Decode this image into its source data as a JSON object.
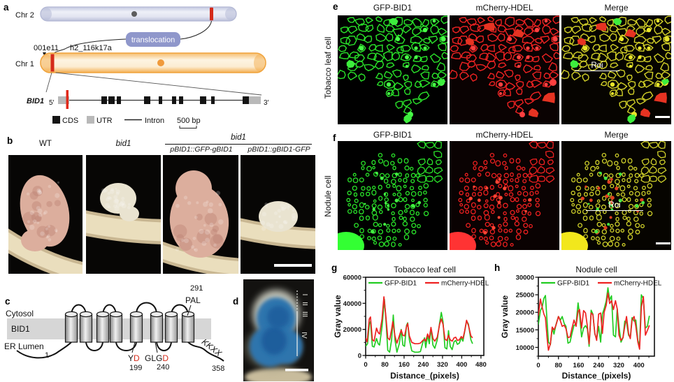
{
  "panels": {
    "a": {
      "letter": "a",
      "chr2_label": "Chr 2",
      "chr1_label": "Chr 1",
      "translocation_label": "translocation",
      "marker1": "001e11",
      "marker2": "h2_116k17a",
      "gene_name": "BID1",
      "five_prime": "5′",
      "three_prime": "3′",
      "legend": {
        "cds": "CDS",
        "utr": "UTR",
        "intron": "Intron",
        "scale": "500 bp"
      }
    },
    "b": {
      "letter": "b",
      "col1": "WT",
      "col2": "bid1",
      "group": "bid1",
      "col3": "pBID1::GFP-gBID1",
      "col4": "pBID1::gBID1-GFP"
    },
    "c": {
      "letter": "c",
      "cytosol": "Cytosol",
      "protein": "BID1",
      "er_lumen": "ER Lumen",
      "n_term": "1",
      "c_term": "358",
      "pal": "PAL",
      "pal_pos": "291",
      "yd_y": "Y",
      "yd_d": "D",
      "yd_pos": "199",
      "glgd_glg": "GLG",
      "glgd_d": "D",
      "glgd_pos": "240",
      "kkxx": "KKXX"
    },
    "d": {
      "letter": "d",
      "zones": [
        "I",
        "II",
        "III",
        "IV"
      ]
    },
    "e": {
      "letter": "e",
      "side_label": "Tobacco leaf cell",
      "headers": [
        "GFP-BID1",
        "mCherry-HDEL",
        "Merge"
      ],
      "roi": "Roi"
    },
    "f": {
      "letter": "f",
      "side_label": "Nodule cell",
      "headers": [
        "GFP-BID1",
        "mCherry-HDEL",
        "Merge"
      ],
      "roi": "Roi"
    },
    "g": {
      "letter": "g"
    },
    "h": {
      "letter": "h"
    }
  },
  "colors": {
    "gfp_green": "#22dd22",
    "mcherry_red": "#ee2222",
    "chr2_fill": "#dbdeee",
    "chr1_fill": "#fdeed6",
    "translocation_box": "#8f97cb",
    "red_marker": "#d42a1a",
    "gus_blue": "#2f74ad"
  },
  "chart_data": [
    {
      "id": "g",
      "type": "line",
      "title": "Tobacco leaf cell",
      "xlabel": "Distance_(pixels)",
      "ylabel": "Gray value",
      "xlim": [
        0,
        492
      ],
      "ylim": [
        0,
        60000
      ],
      "xticks": [
        0,
        80,
        160,
        240,
        320,
        400,
        480
      ],
      "yticks": [
        0,
        20000,
        40000,
        60000
      ],
      "xminor": 40,
      "yminor": 10000,
      "grid": false,
      "legend_position": "top-inside",
      "plot": {
        "l": 45,
        "t": 21,
        "r": 214,
        "b": 133
      },
      "title_y": 14,
      "xlabel_y": 166,
      "ylabel_x": 9,
      "series": [
        {
          "name": "GFP-BID1",
          "color": "#22cc22",
          "points": [
            [
              0,
              7000
            ],
            [
              8,
              9000
            ],
            [
              15,
              24000
            ],
            [
              20,
              26000
            ],
            [
              28,
              7000
            ],
            [
              35,
              6500
            ],
            [
              45,
              13000
            ],
            [
              52,
              9000
            ],
            [
              58,
              8000
            ],
            [
              68,
              22000
            ],
            [
              78,
              43000
            ],
            [
              84,
              28000
            ],
            [
              92,
              4000
            ],
            [
              100,
              2500
            ],
            [
              108,
              12000
            ],
            [
              115,
              31000
            ],
            [
              122,
              12000
            ],
            [
              130,
              2500
            ],
            [
              140,
              9000
            ],
            [
              148,
              20000
            ],
            [
              155,
              8000
            ],
            [
              162,
              7000
            ],
            [
              170,
              23000
            ],
            [
              175,
              25000
            ],
            [
              182,
              12000
            ],
            [
              192,
              3500
            ],
            [
              205,
              2500
            ],
            [
              218,
              2500
            ],
            [
              228,
              3000
            ],
            [
              238,
              10000
            ],
            [
              245,
              13500
            ],
            [
              250,
              6000
            ],
            [
              258,
              15500
            ],
            [
              265,
              9000
            ],
            [
              272,
              21000
            ],
            [
              280,
              8000
            ],
            [
              288,
              5500
            ],
            [
              298,
              12000
            ],
            [
              308,
              25000
            ],
            [
              315,
              33000
            ],
            [
              322,
              26000
            ],
            [
              330,
              6000
            ],
            [
              338,
              5000
            ],
            [
              345,
              19000
            ],
            [
              352,
              7000
            ],
            [
              360,
              4500
            ],
            [
              368,
              10500
            ],
            [
              375,
              11500
            ],
            [
              382,
              8500
            ],
            [
              390,
              9500
            ],
            [
              398,
              13500
            ],
            [
              405,
              11000
            ],
            [
              412,
              18000
            ],
            [
              420,
              26500
            ],
            [
              428,
              24000
            ],
            [
              438,
              12000
            ],
            [
              445,
              9000
            ]
          ]
        },
        {
          "name": "mCherry-HDEL",
          "color": "#ee2222",
          "points": [
            [
              0,
              13500
            ],
            [
              6,
              10500
            ],
            [
              15,
              28000
            ],
            [
              20,
              29500
            ],
            [
              28,
              12000
            ],
            [
              35,
              11000
            ],
            [
              45,
              21000
            ],
            [
              52,
              17500
            ],
            [
              58,
              16500
            ],
            [
              68,
              28000
            ],
            [
              76,
              45000
            ],
            [
              84,
              30000
            ],
            [
              92,
              13500
            ],
            [
              100,
              12000
            ],
            [
              108,
              20000
            ],
            [
              113,
              26000
            ],
            [
              122,
              15000
            ],
            [
              130,
              9500
            ],
            [
              140,
              15000
            ],
            [
              148,
              19500
            ],
            [
              155,
              15500
            ],
            [
              162,
              15000
            ],
            [
              170,
              22000
            ],
            [
              175,
              24500
            ],
            [
              182,
              15000
            ],
            [
              192,
              10000
            ],
            [
              205,
              9000
            ],
            [
              218,
              9000
            ],
            [
              228,
              9500
            ],
            [
              238,
              11500
            ],
            [
              245,
              12500
            ],
            [
              250,
              11000
            ],
            [
              258,
              16500
            ],
            [
              265,
              13000
            ],
            [
              272,
              21500
            ],
            [
              280,
              13000
            ],
            [
              288,
              11000
            ],
            [
              298,
              14000
            ],
            [
              308,
              24000
            ],
            [
              315,
              28000
            ],
            [
              322,
              24000
            ],
            [
              330,
              12500
            ],
            [
              338,
              11500
            ],
            [
              345,
              15500
            ],
            [
              352,
              12000
            ],
            [
              360,
              11000
            ],
            [
              368,
              13500
            ],
            [
              375,
              14000
            ],
            [
              382,
              11500
            ],
            [
              390,
              12000
            ],
            [
              398,
              14500
            ],
            [
              405,
              13000
            ],
            [
              412,
              18500
            ],
            [
              420,
              27000
            ],
            [
              428,
              23000
            ],
            [
              438,
              15000
            ],
            [
              445,
              13500
            ]
          ]
        }
      ]
    },
    {
      "id": "h",
      "type": "line",
      "title": "Nodule cell",
      "xlabel": "Distance_(pixels)",
      "ylabel": "Gray value",
      "xlim": [
        0,
        462
      ],
      "ylim": [
        7500,
        30000
      ],
      "xticks": [
        0,
        80,
        160,
        240,
        320,
        400
      ],
      "yticks": [
        10000,
        15000,
        20000,
        25000,
        30000
      ],
      "xminor": 40,
      "yminor": 2500,
      "grid": false,
      "legend_position": "top-inside",
      "plot": {
        "l": 68,
        "t": 21,
        "r": 234,
        "b": 134
      },
      "title_y": 14,
      "xlabel_y": 166,
      "ylabel_x": 24,
      "series": [
        {
          "name": "GFP-BID1",
          "color": "#22cc22",
          "points": [
            [
              0,
              16500
            ],
            [
              8,
              20500
            ],
            [
              15,
              21500
            ],
            [
              22,
              24000
            ],
            [
              28,
              24800
            ],
            [
              35,
              17000
            ],
            [
              40,
              11500
            ],
            [
              48,
              10800
            ],
            [
              55,
              15500
            ],
            [
              62,
              13800
            ],
            [
              70,
              16500
            ],
            [
              80,
              18800
            ],
            [
              88,
              17800
            ],
            [
              95,
              18800
            ],
            [
              103,
              16800
            ],
            [
              110,
              16000
            ],
            [
              118,
              11200
            ],
            [
              126,
              11500
            ],
            [
              134,
              14000
            ],
            [
              142,
              16300
            ],
            [
              150,
              16500
            ],
            [
              158,
              22700
            ],
            [
              164,
              19500
            ],
            [
              172,
              13000
            ],
            [
              180,
              15500
            ],
            [
              188,
              16200
            ],
            [
              195,
              15300
            ],
            [
              202,
              10300
            ],
            [
              210,
              20600
            ],
            [
              217,
              19500
            ],
            [
              225,
              13800
            ],
            [
              232,
              12500
            ],
            [
              240,
              16000
            ],
            [
              248,
              11500
            ],
            [
              255,
              19500
            ],
            [
              262,
              21000
            ],
            [
              270,
              23200
            ],
            [
              277,
              27000
            ],
            [
              284,
              23500
            ],
            [
              291,
              24700
            ],
            [
              299,
              13500
            ],
            [
              307,
              13000
            ],
            [
              314,
              21000
            ],
            [
              321,
              16000
            ],
            [
              329,
              11500
            ],
            [
              337,
              12800
            ],
            [
              344,
              17500
            ],
            [
              351,
              17200
            ],
            [
              359,
              13500
            ],
            [
              366,
              12800
            ],
            [
              373,
              18500
            ],
            [
              381,
              17500
            ],
            [
              388,
              17800
            ],
            [
              396,
              12000
            ],
            [
              403,
              10500
            ],
            [
              410,
              25000
            ],
            [
              418,
              23800
            ],
            [
              426,
              15500
            ],
            [
              434,
              16000
            ],
            [
              442,
              19000
            ]
          ]
        },
        {
          "name": "mCherry-HDEL",
          "color": "#ee2222",
          "points": [
            [
              0,
              19000
            ],
            [
              8,
              23800
            ],
            [
              15,
              21500
            ],
            [
              22,
              19500
            ],
            [
              28,
              18500
            ],
            [
              35,
              12500
            ],
            [
              40,
              9200
            ],
            [
              48,
              11000
            ],
            [
              55,
              15800
            ],
            [
              62,
              15000
            ],
            [
              70,
              16300
            ],
            [
              80,
              18800
            ],
            [
              88,
              17500
            ],
            [
              95,
              16000
            ],
            [
              103,
              16300
            ],
            [
              110,
              15300
            ],
            [
              118,
              12800
            ],
            [
              126,
              13000
            ],
            [
              134,
              15500
            ],
            [
              142,
              17800
            ],
            [
              150,
              16000
            ],
            [
              158,
              20300
            ],
            [
              164,
              20800
            ],
            [
              172,
              15500
            ],
            [
              180,
              20500
            ],
            [
              188,
              19800
            ],
            [
              195,
              16000
            ],
            [
              202,
              11000
            ],
            [
              210,
              19800
            ],
            [
              217,
              19300
            ],
            [
              225,
              14000
            ],
            [
              232,
              12000
            ],
            [
              240,
              19500
            ],
            [
              248,
              19800
            ],
            [
              255,
              14000
            ],
            [
              262,
              20000
            ],
            [
              270,
              22000
            ],
            [
              277,
              25500
            ],
            [
              284,
              22500
            ],
            [
              291,
              23300
            ],
            [
              299,
              20800
            ],
            [
              307,
              23300
            ],
            [
              314,
              21000
            ],
            [
              321,
              13500
            ],
            [
              329,
              12000
            ],
            [
              337,
              12800
            ],
            [
              344,
              16000
            ],
            [
              351,
              18800
            ],
            [
              359,
              14000
            ],
            [
              366,
              12500
            ],
            [
              373,
              17800
            ],
            [
              381,
              18800
            ],
            [
              388,
              16000
            ],
            [
              396,
              11500
            ],
            [
              403,
              9500
            ],
            [
              410,
              21500
            ],
            [
              418,
              24500
            ],
            [
              426,
              13500
            ],
            [
              434,
              14800
            ],
            [
              442,
              16300
            ]
          ]
        }
      ]
    }
  ]
}
